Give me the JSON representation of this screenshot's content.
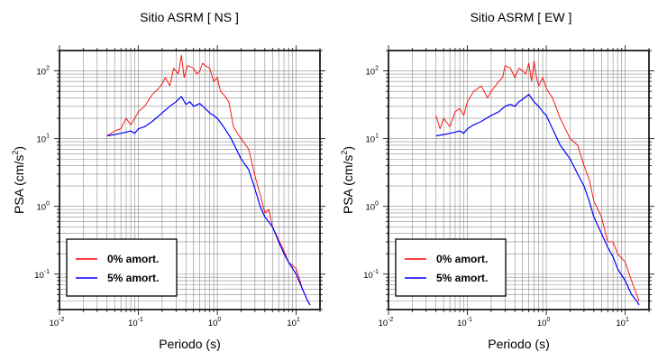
{
  "chart_data": [
    {
      "type": "line",
      "title": "Sitio ASRM [ NS ]",
      "xlabel": "Periodo (s)",
      "ylabel_main": "PSA (cm/s",
      "ylabel_sup": "2",
      "ylabel_close": ")",
      "xscale": "log",
      "yscale": "log",
      "xlim": [
        0.01,
        20
      ],
      "ylim": [
        0.03,
        200
      ],
      "grid": true,
      "legend_position": "bottom-left",
      "x_ticks": [
        {
          "base": "10",
          "exp": "-2"
        },
        {
          "base": "10",
          "exp": "-1"
        },
        {
          "base": "10",
          "exp": "0"
        },
        {
          "base": "10",
          "exp": "1"
        }
      ],
      "y_ticks": [
        {
          "base": "10",
          "exp": "-1"
        },
        {
          "base": "10",
          "exp": "0"
        },
        {
          "base": "10",
          "exp": "1"
        },
        {
          "base": "10",
          "exp": "2"
        }
      ],
      "series": [
        {
          "name": "0% amort.",
          "color": "#ff0000",
          "points": [
            [
              0.04,
              11
            ],
            [
              0.045,
              12
            ],
            [
              0.05,
              13
            ],
            [
              0.06,
              14
            ],
            [
              0.07,
              20
            ],
            [
              0.08,
              16
            ],
            [
              0.09,
              20
            ],
            [
              0.1,
              25
            ],
            [
              0.12,
              30
            ],
            [
              0.15,
              45
            ],
            [
              0.18,
              55
            ],
            [
              0.2,
              65
            ],
            [
              0.22,
              80
            ],
            [
              0.25,
              60
            ],
            [
              0.28,
              110
            ],
            [
              0.32,
              90
            ],
            [
              0.35,
              170
            ],
            [
              0.38,
              80
            ],
            [
              0.42,
              120
            ],
            [
              0.5,
              110
            ],
            [
              0.55,
              90
            ],
            [
              0.6,
              100
            ],
            [
              0.65,
              130
            ],
            [
              0.7,
              120
            ],
            [
              0.8,
              110
            ],
            [
              0.9,
              70
            ],
            [
              1.0,
              80
            ],
            [
              1.1,
              50
            ],
            [
              1.2,
              45
            ],
            [
              1.4,
              35
            ],
            [
              1.6,
              15
            ],
            [
              1.8,
              12
            ],
            [
              2.0,
              10
            ],
            [
              2.5,
              7
            ],
            [
              3.0,
              2.8
            ],
            [
              3.5,
              1.5
            ],
            [
              4.0,
              0.8
            ],
            [
              4.5,
              0.9
            ],
            [
              5.0,
              0.5
            ],
            [
              6.0,
              0.32
            ],
            [
              7.0,
              0.22
            ],
            [
              8.0,
              0.15
            ],
            [
              10.0,
              0.12
            ],
            [
              12.0,
              0.06
            ],
            [
              14.0,
              0.04
            ],
            [
              15.0,
              0.035
            ]
          ]
        },
        {
          "name": "5% amort.",
          "color": "#0000ff",
          "points": [
            [
              0.04,
              11
            ],
            [
              0.05,
              11.5
            ],
            [
              0.06,
              12
            ],
            [
              0.07,
              12.5
            ],
            [
              0.08,
              13
            ],
            [
              0.09,
              12
            ],
            [
              0.1,
              14
            ],
            [
              0.12,
              15
            ],
            [
              0.15,
              18
            ],
            [
              0.2,
              24
            ],
            [
              0.25,
              30
            ],
            [
              0.3,
              35
            ],
            [
              0.35,
              42
            ],
            [
              0.4,
              32
            ],
            [
              0.45,
              35
            ],
            [
              0.5,
              30
            ],
            [
              0.6,
              33
            ],
            [
              0.7,
              28
            ],
            [
              0.8,
              24
            ],
            [
              0.9,
              22
            ],
            [
              1.0,
              20
            ],
            [
              1.2,
              15
            ],
            [
              1.5,
              10
            ],
            [
              2.0,
              5
            ],
            [
              2.5,
              3.5
            ],
            [
              3.0,
              1.8
            ],
            [
              3.5,
              1.0
            ],
            [
              4.0,
              0.7
            ],
            [
              5.0,
              0.5
            ],
            [
              6.0,
              0.3
            ],
            [
              7.0,
              0.2
            ],
            [
              8.0,
              0.15
            ],
            [
              10.0,
              0.1
            ],
            [
              12.0,
              0.06
            ],
            [
              14.0,
              0.04
            ],
            [
              15.0,
              0.035
            ]
          ]
        }
      ]
    },
    {
      "type": "line",
      "title": "Sitio ASRM [ EW ]",
      "xlabel": "Periodo (s)",
      "ylabel_main": "PSA (cm/s",
      "ylabel_sup": "2",
      "ylabel_close": ")",
      "xscale": "log",
      "yscale": "log",
      "xlim": [
        0.01,
        20
      ],
      "ylim": [
        0.03,
        200
      ],
      "grid": true,
      "legend_position": "bottom-left",
      "x_ticks": [
        {
          "base": "10",
          "exp": "-2"
        },
        {
          "base": "10",
          "exp": "-1"
        },
        {
          "base": "10",
          "exp": "0"
        },
        {
          "base": "10",
          "exp": "1"
        }
      ],
      "y_ticks": [
        {
          "base": "10",
          "exp": "-1"
        },
        {
          "base": "10",
          "exp": "0"
        },
        {
          "base": "10",
          "exp": "1"
        },
        {
          "base": "10",
          "exp": "2"
        }
      ],
      "series": [
        {
          "name": "0% amort.",
          "color": "#ff0000",
          "points": [
            [
              0.04,
              22
            ],
            [
              0.045,
              14
            ],
            [
              0.05,
              20
            ],
            [
              0.06,
              15
            ],
            [
              0.07,
              25
            ],
            [
              0.08,
              28
            ],
            [
              0.09,
              22
            ],
            [
              0.1,
              35
            ],
            [
              0.12,
              50
            ],
            [
              0.15,
              60
            ],
            [
              0.18,
              40
            ],
            [
              0.2,
              50
            ],
            [
              0.25,
              70
            ],
            [
              0.28,
              80
            ],
            [
              0.3,
              120
            ],
            [
              0.35,
              110
            ],
            [
              0.4,
              80
            ],
            [
              0.45,
              110
            ],
            [
              0.5,
              100
            ],
            [
              0.55,
              90
            ],
            [
              0.6,
              130
            ],
            [
              0.65,
              70
            ],
            [
              0.7,
              140
            ],
            [
              0.75,
              80
            ],
            [
              0.8,
              60
            ],
            [
              0.9,
              80
            ],
            [
              1.0,
              55
            ],
            [
              1.2,
              40
            ],
            [
              1.5,
              20
            ],
            [
              2.0,
              10
            ],
            [
              2.5,
              8
            ],
            [
              3.0,
              4
            ],
            [
              3.5,
              2.5
            ],
            [
              4.0,
              1.2
            ],
            [
              5.0,
              0.7
            ],
            [
              6.0,
              0.3
            ],
            [
              7.0,
              0.3
            ],
            [
              8.0,
              0.2
            ],
            [
              10.0,
              0.15
            ],
            [
              12.0,
              0.08
            ],
            [
              14.0,
              0.05
            ],
            [
              15.0,
              0.04
            ]
          ]
        },
        {
          "name": "5% amort.",
          "color": "#0000ff",
          "points": [
            [
              0.04,
              11
            ],
            [
              0.05,
              11.5
            ],
            [
              0.06,
              12
            ],
            [
              0.07,
              12.5
            ],
            [
              0.08,
              13
            ],
            [
              0.09,
              12
            ],
            [
              0.1,
              14
            ],
            [
              0.12,
              16
            ],
            [
              0.15,
              18
            ],
            [
              0.2,
              22
            ],
            [
              0.25,
              25
            ],
            [
              0.3,
              30
            ],
            [
              0.35,
              32
            ],
            [
              0.4,
              30
            ],
            [
              0.45,
              35
            ],
            [
              0.5,
              38
            ],
            [
              0.6,
              45
            ],
            [
              0.7,
              35
            ],
            [
              0.8,
              30
            ],
            [
              0.9,
              25
            ],
            [
              1.0,
              22
            ],
            [
              1.2,
              14
            ],
            [
              1.5,
              8
            ],
            [
              2.0,
              5
            ],
            [
              2.5,
              3
            ],
            [
              3.0,
              2
            ],
            [
              3.5,
              1.2
            ],
            [
              4.0,
              0.7
            ],
            [
              5.0,
              0.4
            ],
            [
              6.0,
              0.25
            ],
            [
              7.0,
              0.18
            ],
            [
              8.0,
              0.12
            ],
            [
              10.0,
              0.08
            ],
            [
              12.0,
              0.05
            ],
            [
              14.0,
              0.04
            ],
            [
              15.0,
              0.035
            ]
          ]
        }
      ]
    }
  ]
}
